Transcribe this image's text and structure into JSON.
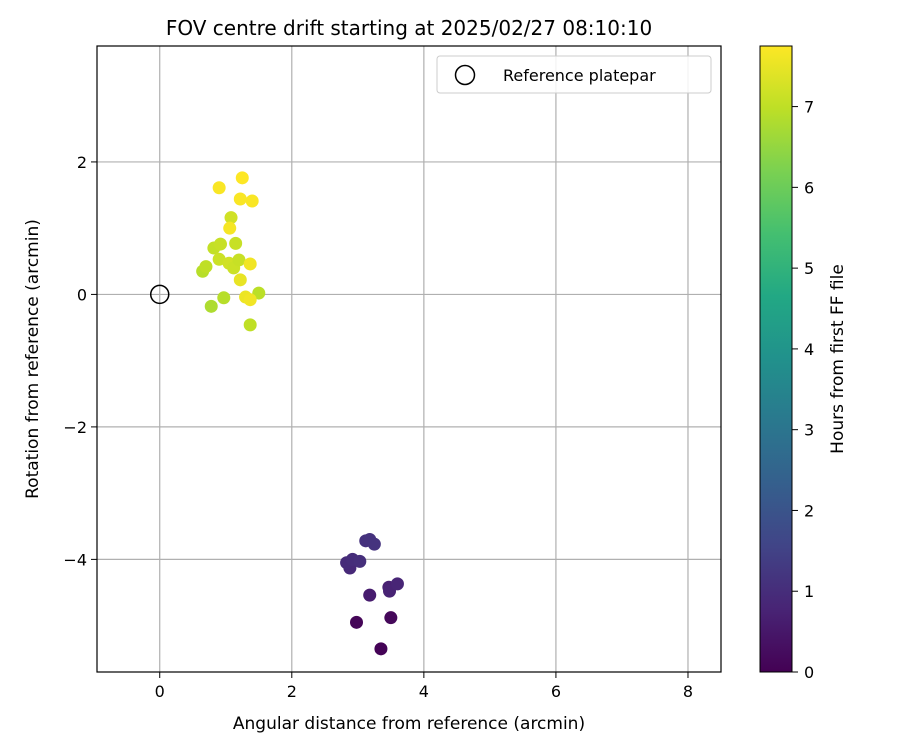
{
  "chart_data": {
    "type": "scatter",
    "title": "FOV centre drift starting at 2025/02/27 08:10:10",
    "xlabel": "Angular distance from reference (arcmin)",
    "ylabel": "Rotation from reference (arcmin)",
    "xlim": [
      -0.95,
      8.5
    ],
    "ylim": [
      -5.7,
      3.75
    ],
    "xticks": [
      0,
      2,
      4,
      6,
      8
    ],
    "yticks": [
      -4,
      -2,
      0,
      2
    ],
    "xtick_labels": [
      "0",
      "2",
      "4",
      "6",
      "8"
    ],
    "ytick_labels": [
      "−4",
      "−2",
      "0",
      "2"
    ],
    "grid": true,
    "legend": {
      "placement": "top-right",
      "entries": [
        "Reference platepar"
      ]
    },
    "reference_point": {
      "x": 0,
      "y": 0
    },
    "colorbar": {
      "label": "Hours from first FF file",
      "min": 0,
      "max": 7.75,
      "ticks": [
        0,
        1,
        2,
        3,
        4,
        5,
        6,
        7
      ],
      "tick_labels": [
        "0",
        "1",
        "2",
        "3",
        "4",
        "5",
        "6",
        "7"
      ],
      "colormap": "viridis"
    },
    "points": [
      {
        "x": 3.35,
        "y": -5.35,
        "c": 0.05
      },
      {
        "x": 2.98,
        "y": -4.95,
        "c": 0.1
      },
      {
        "x": 3.5,
        "y": -4.88,
        "c": 0.15
      },
      {
        "x": 3.18,
        "y": -4.54,
        "c": 0.6
      },
      {
        "x": 3.47,
        "y": -4.42,
        "c": 0.7
      },
      {
        "x": 3.48,
        "y": -4.48,
        "c": 0.75
      },
      {
        "x": 3.6,
        "y": -4.37,
        "c": 0.8
      },
      {
        "x": 2.88,
        "y": -4.13,
        "c": 0.9
      },
      {
        "x": 2.83,
        "y": -4.05,
        "c": 0.95
      },
      {
        "x": 2.92,
        "y": -4.0,
        "c": 1.0
      },
      {
        "x": 3.03,
        "y": -4.03,
        "c": 1.05
      },
      {
        "x": 3.12,
        "y": -3.72,
        "c": 1.1
      },
      {
        "x": 3.18,
        "y": -3.7,
        "c": 1.12
      },
      {
        "x": 3.25,
        "y": -3.77,
        "c": 1.15
      },
      {
        "x": 0.78,
        "y": -0.18,
        "c": 6.8
      },
      {
        "x": 0.97,
        "y": -0.05,
        "c": 6.9
      },
      {
        "x": 1.37,
        "y": -0.46,
        "c": 7.0
      },
      {
        "x": 1.5,
        "y": 0.02,
        "c": 6.95
      },
      {
        "x": 0.65,
        "y": 0.35,
        "c": 6.9
      },
      {
        "x": 0.7,
        "y": 0.42,
        "c": 7.0
      },
      {
        "x": 0.82,
        "y": 0.7,
        "c": 7.05
      },
      {
        "x": 0.92,
        "y": 0.76,
        "c": 7.1
      },
      {
        "x": 0.9,
        "y": 0.53,
        "c": 7.15
      },
      {
        "x": 1.05,
        "y": 0.47,
        "c": 7.2
      },
      {
        "x": 1.12,
        "y": 0.4,
        "c": 7.15
      },
      {
        "x": 1.2,
        "y": 0.52,
        "c": 7.1
      },
      {
        "x": 1.15,
        "y": 0.77,
        "c": 7.1
      },
      {
        "x": 1.08,
        "y": 1.16,
        "c": 7.2
      },
      {
        "x": 1.22,
        "y": 0.22,
        "c": 7.5
      },
      {
        "x": 1.3,
        "y": -0.04,
        "c": 7.55
      },
      {
        "x": 1.37,
        "y": -0.08,
        "c": 7.6
      },
      {
        "x": 1.37,
        "y": 0.46,
        "c": 7.6
      },
      {
        "x": 1.06,
        "y": 1.0,
        "c": 7.65
      },
      {
        "x": 0.9,
        "y": 1.61,
        "c": 7.7
      },
      {
        "x": 1.22,
        "y": 1.44,
        "c": 7.7
      },
      {
        "x": 1.4,
        "y": 1.41,
        "c": 7.7
      },
      {
        "x": 1.25,
        "y": 1.76,
        "c": 7.75
      }
    ]
  }
}
